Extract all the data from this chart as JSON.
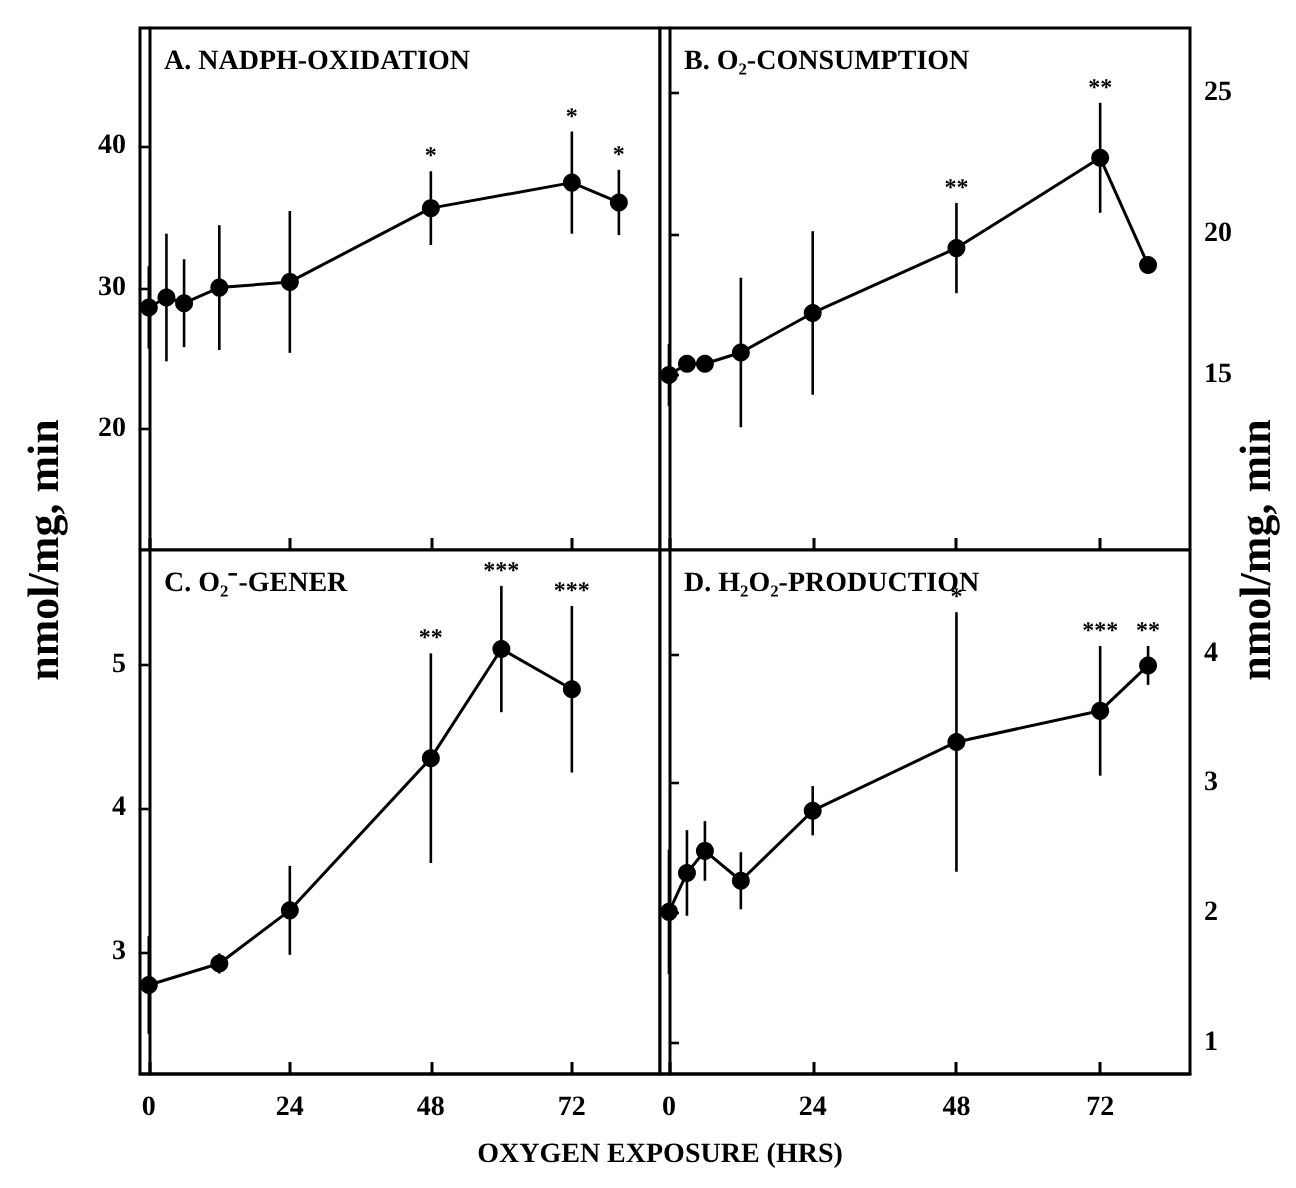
{
  "chart_data": [
    {
      "type": "line",
      "title": "A. NADPH-OXIDATION",
      "ylabel": "nmol/mg, min",
      "x": [
        0,
        3,
        6,
        12,
        24,
        48,
        72,
        80
      ],
      "series": [
        {
          "color": "#000000",
          "values": [
            28.6,
            29.3,
            28.9,
            30.0,
            30.4,
            35.6,
            37.4,
            36.0
          ],
          "errors": [
            2.9,
            4.5,
            3.1,
            4.4,
            5.0,
            2.6,
            3.6,
            2.3
          ]
        }
      ],
      "xlim": [
        -1.5,
        87
      ],
      "xticks": [
        0,
        24,
        48,
        72
      ],
      "ylim": [
        11.5,
        48.3
      ],
      "yticks": [
        20,
        30,
        40
      ],
      "tick_labels": "y",
      "marker": "circle",
      "line_style": "solid",
      "annotations": [
        {
          "text": "*",
          "x": 48,
          "y": 38.2
        },
        {
          "text": "*",
          "x": 72,
          "y": 41.0
        },
        {
          "text": "*",
          "x": 80,
          "y": 38.3
        }
      ]
    },
    {
      "type": "line",
      "title": "B. O₂-CONSUMPTION",
      "ylabel": "nmol/mg, min",
      "x": [
        0,
        3,
        6,
        12,
        24,
        48,
        72,
        80
      ],
      "series": [
        {
          "color": "#000000",
          "values": [
            15.0,
            15.4,
            15.4,
            15.8,
            17.2,
            19.5,
            22.7,
            18.9
          ],
          "errors": [
            1.1,
            null,
            null,
            2.65,
            2.9,
            1.6,
            1.95,
            null
          ]
        }
      ],
      "xlim": [
        -1.5,
        87
      ],
      "xticks": [
        0,
        24,
        48,
        72
      ],
      "ylim": [
        8.8,
        27.3
      ],
      "yticks": [
        15,
        20,
        25
      ],
      "tick_labels": "y",
      "marker": "circle",
      "line_style": "solid",
      "annotations": [
        {
          "text": "**",
          "x": 48,
          "y": 21.1
        },
        {
          "text": "**",
          "x": 72,
          "y": 24.65
        }
      ]
    },
    {
      "type": "line",
      "title": "C. O₂⁻-GENER",
      "xlabel": "OXYGEN EXPOSURE (HRS)",
      "x": [
        0,
        12,
        24,
        48,
        60,
        72
      ],
      "series": [
        {
          "color": "#000000",
          "values": [
            2.77,
            2.92,
            3.29,
            4.35,
            5.11,
            4.83
          ],
          "errors": [
            0.34,
            0.07,
            0.31,
            0.73,
            0.44,
            0.58
          ]
        }
      ],
      "xlim": [
        -1.5,
        87
      ],
      "xticks": [
        0,
        24,
        48,
        72
      ],
      "ylim": [
        2.15,
        5.8
      ],
      "yticks": [
        3,
        4,
        5
      ],
      "marker": "circle",
      "line_style": "solid",
      "annotations": [
        {
          "text": "**",
          "x": 48,
          "y": 5.08
        },
        {
          "text": "***",
          "x": 60,
          "y": 5.55
        },
        {
          "text": "***",
          "x": 72,
          "y": 5.41
        }
      ]
    },
    {
      "type": "line",
      "title": "D. H₂O₂-PRODUCTION",
      "x": [
        0,
        3,
        6,
        12,
        24,
        48,
        72,
        80
      ],
      "series": [
        {
          "color": "#000000",
          "values": [
            2.01,
            2.31,
            2.48,
            2.25,
            2.79,
            3.32,
            3.56,
            3.91
          ],
          "errors": [
            0.48,
            0.33,
            0.23,
            0.22,
            0.19,
            1.0,
            0.5,
            0.15
          ]
        }
      ],
      "xlim": [
        -1.5,
        87
      ],
      "xticks": [
        0,
        24,
        48,
        72
      ],
      "ylim": [
        0.76,
        4.8
      ],
      "yticks": [
        1,
        2,
        3,
        4
      ],
      "marker": "circle",
      "line_style": "solid",
      "annotations": [
        {
          "text": "*",
          "x": 48,
          "y": 4.32
        },
        {
          "text": "***",
          "x": 72,
          "y": 4.06
        },
        {
          "text": "**",
          "x": 80,
          "y": 4.06
        }
      ]
    }
  ]
}
